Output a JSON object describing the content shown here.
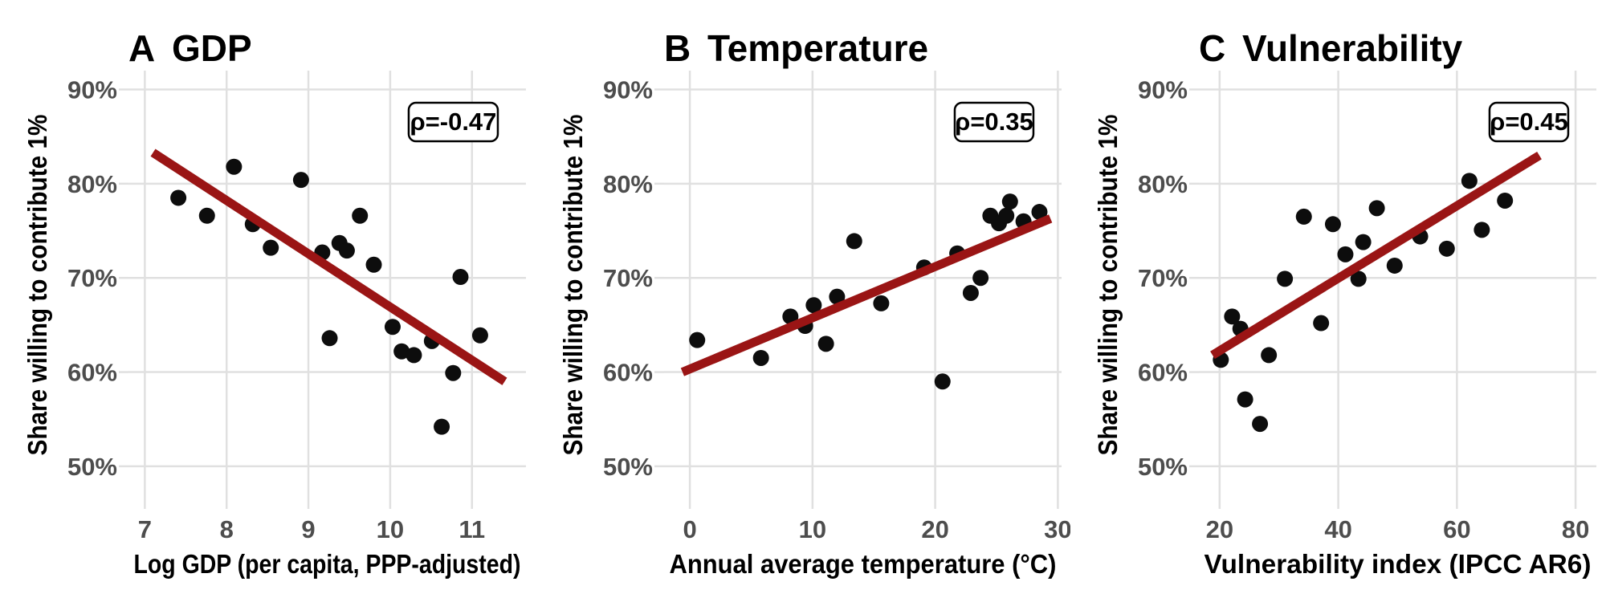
{
  "style": {
    "background": "#FFFFFF",
    "point_color": "#0D0D0D",
    "trend_color": "#9A1515",
    "grid_color": "#E0E0E0",
    "tick_label_color": "#4D4D4D",
    "text_color": "#000000",
    "badge_bg": "#FFFFFF",
    "badge_border": "#000000"
  },
  "chart_data": [
    {
      "type": "scatter",
      "panel_label": "A",
      "title": "GDP",
      "xlabel": "Log GDP (per capita, PPP-adjusted)",
      "ylabel": "Share willing to contribute 1%",
      "annotation": "ρ=-0.47",
      "annotation_position": "top-right",
      "grid": true,
      "xlim": [
        6.8,
        11.66
      ],
      "ylim": [
        46.5,
        92
      ],
      "xticks": [
        7,
        8,
        9,
        10,
        11
      ],
      "yticks": [
        50,
        60,
        70,
        80,
        90
      ],
      "ytick_suffix": "%",
      "points": [
        [
          7.41,
          78.5
        ],
        [
          7.76,
          76.6
        ],
        [
          8.09,
          81.8
        ],
        [
          8.32,
          75.7
        ],
        [
          8.54,
          73.2
        ],
        [
          8.91,
          80.4
        ],
        [
          9.17,
          72.7
        ],
        [
          9.26,
          63.6
        ],
        [
          9.38,
          73.7
        ],
        [
          9.47,
          72.9
        ],
        [
          9.63,
          76.6
        ],
        [
          9.8,
          71.4
        ],
        [
          10.03,
          64.8
        ],
        [
          10.14,
          62.2
        ],
        [
          10.29,
          61.8
        ],
        [
          10.51,
          63.3
        ],
        [
          10.63,
          54.2
        ],
        [
          10.77,
          59.9
        ],
        [
          10.86,
          70.1
        ],
        [
          11.1,
          63.9
        ]
      ],
      "trend": {
        "type": "linear",
        "x1": 7.1,
        "y1": 83.3,
        "x2": 11.4,
        "y2": 59.0
      }
    },
    {
      "type": "scatter",
      "panel_label": "B",
      "title": "Temperature",
      "xlabel": "Annual average temperature (°C)",
      "ylabel": "Share willing to contribute 1%",
      "annotation": "ρ=0.35",
      "annotation_position": "top-right",
      "grid": true,
      "xlim": [
        -2.1,
        30.3
      ],
      "ylim": [
        46.5,
        92
      ],
      "xticks": [
        0,
        10,
        20,
        30
      ],
      "yticks": [
        50,
        60,
        70,
        80,
        90
      ],
      "ytick_suffix": "%",
      "points": [
        [
          0.6,
          63.4
        ],
        [
          5.8,
          61.5
        ],
        [
          8.2,
          65.9
        ],
        [
          9.4,
          64.9
        ],
        [
          10.1,
          67.1
        ],
        [
          11.1,
          63.0
        ],
        [
          12.0,
          68.0
        ],
        [
          13.4,
          73.9
        ],
        [
          15.6,
          67.3
        ],
        [
          19.1,
          71.1
        ],
        [
          20.6,
          59.0
        ],
        [
          21.8,
          72.6
        ],
        [
          22.9,
          68.4
        ],
        [
          23.7,
          70.0
        ],
        [
          24.5,
          76.6
        ],
        [
          25.2,
          75.8
        ],
        [
          25.8,
          76.6
        ],
        [
          26.1,
          78.1
        ],
        [
          27.2,
          76.0
        ],
        [
          28.5,
          77.0
        ]
      ],
      "trend": {
        "type": "linear",
        "x1": -0.6,
        "y1": 60.0,
        "x2": 29.4,
        "y2": 76.3
      }
    },
    {
      "type": "scatter",
      "panel_label": "C",
      "title": "Vulnerability",
      "xlabel": "Vulnerability index (IPCC AR6)",
      "ylabel": "Share willing to contribute 1%",
      "annotation": "ρ=0.45",
      "annotation_position": "top-right",
      "grid": true,
      "xlim": [
        16.5,
        83.5
      ],
      "ylim": [
        46.5,
        92
      ],
      "xticks": [
        20,
        40,
        60,
        80
      ],
      "yticks": [
        50,
        60,
        70,
        80,
        90
      ],
      "ytick_suffix": "%",
      "points": [
        [
          20.2,
          61.3
        ],
        [
          22.1,
          65.9
        ],
        [
          23.5,
          64.6
        ],
        [
          24.3,
          57.1
        ],
        [
          26.8,
          54.5
        ],
        [
          28.3,
          61.8
        ],
        [
          31.0,
          69.9
        ],
        [
          34.2,
          76.5
        ],
        [
          37.1,
          65.2
        ],
        [
          39.1,
          75.7
        ],
        [
          41.2,
          72.5
        ],
        [
          43.4,
          69.9
        ],
        [
          44.2,
          73.8
        ],
        [
          46.5,
          77.4
        ],
        [
          49.5,
          71.3
        ],
        [
          53.8,
          74.4
        ],
        [
          58.3,
          73.1
        ],
        [
          62.1,
          80.3
        ],
        [
          64.2,
          75.1
        ],
        [
          68.1,
          78.2
        ]
      ],
      "trend": {
        "type": "linear",
        "x1": 18.8,
        "y1": 61.8,
        "x2": 73.9,
        "y2": 83.0
      }
    }
  ]
}
